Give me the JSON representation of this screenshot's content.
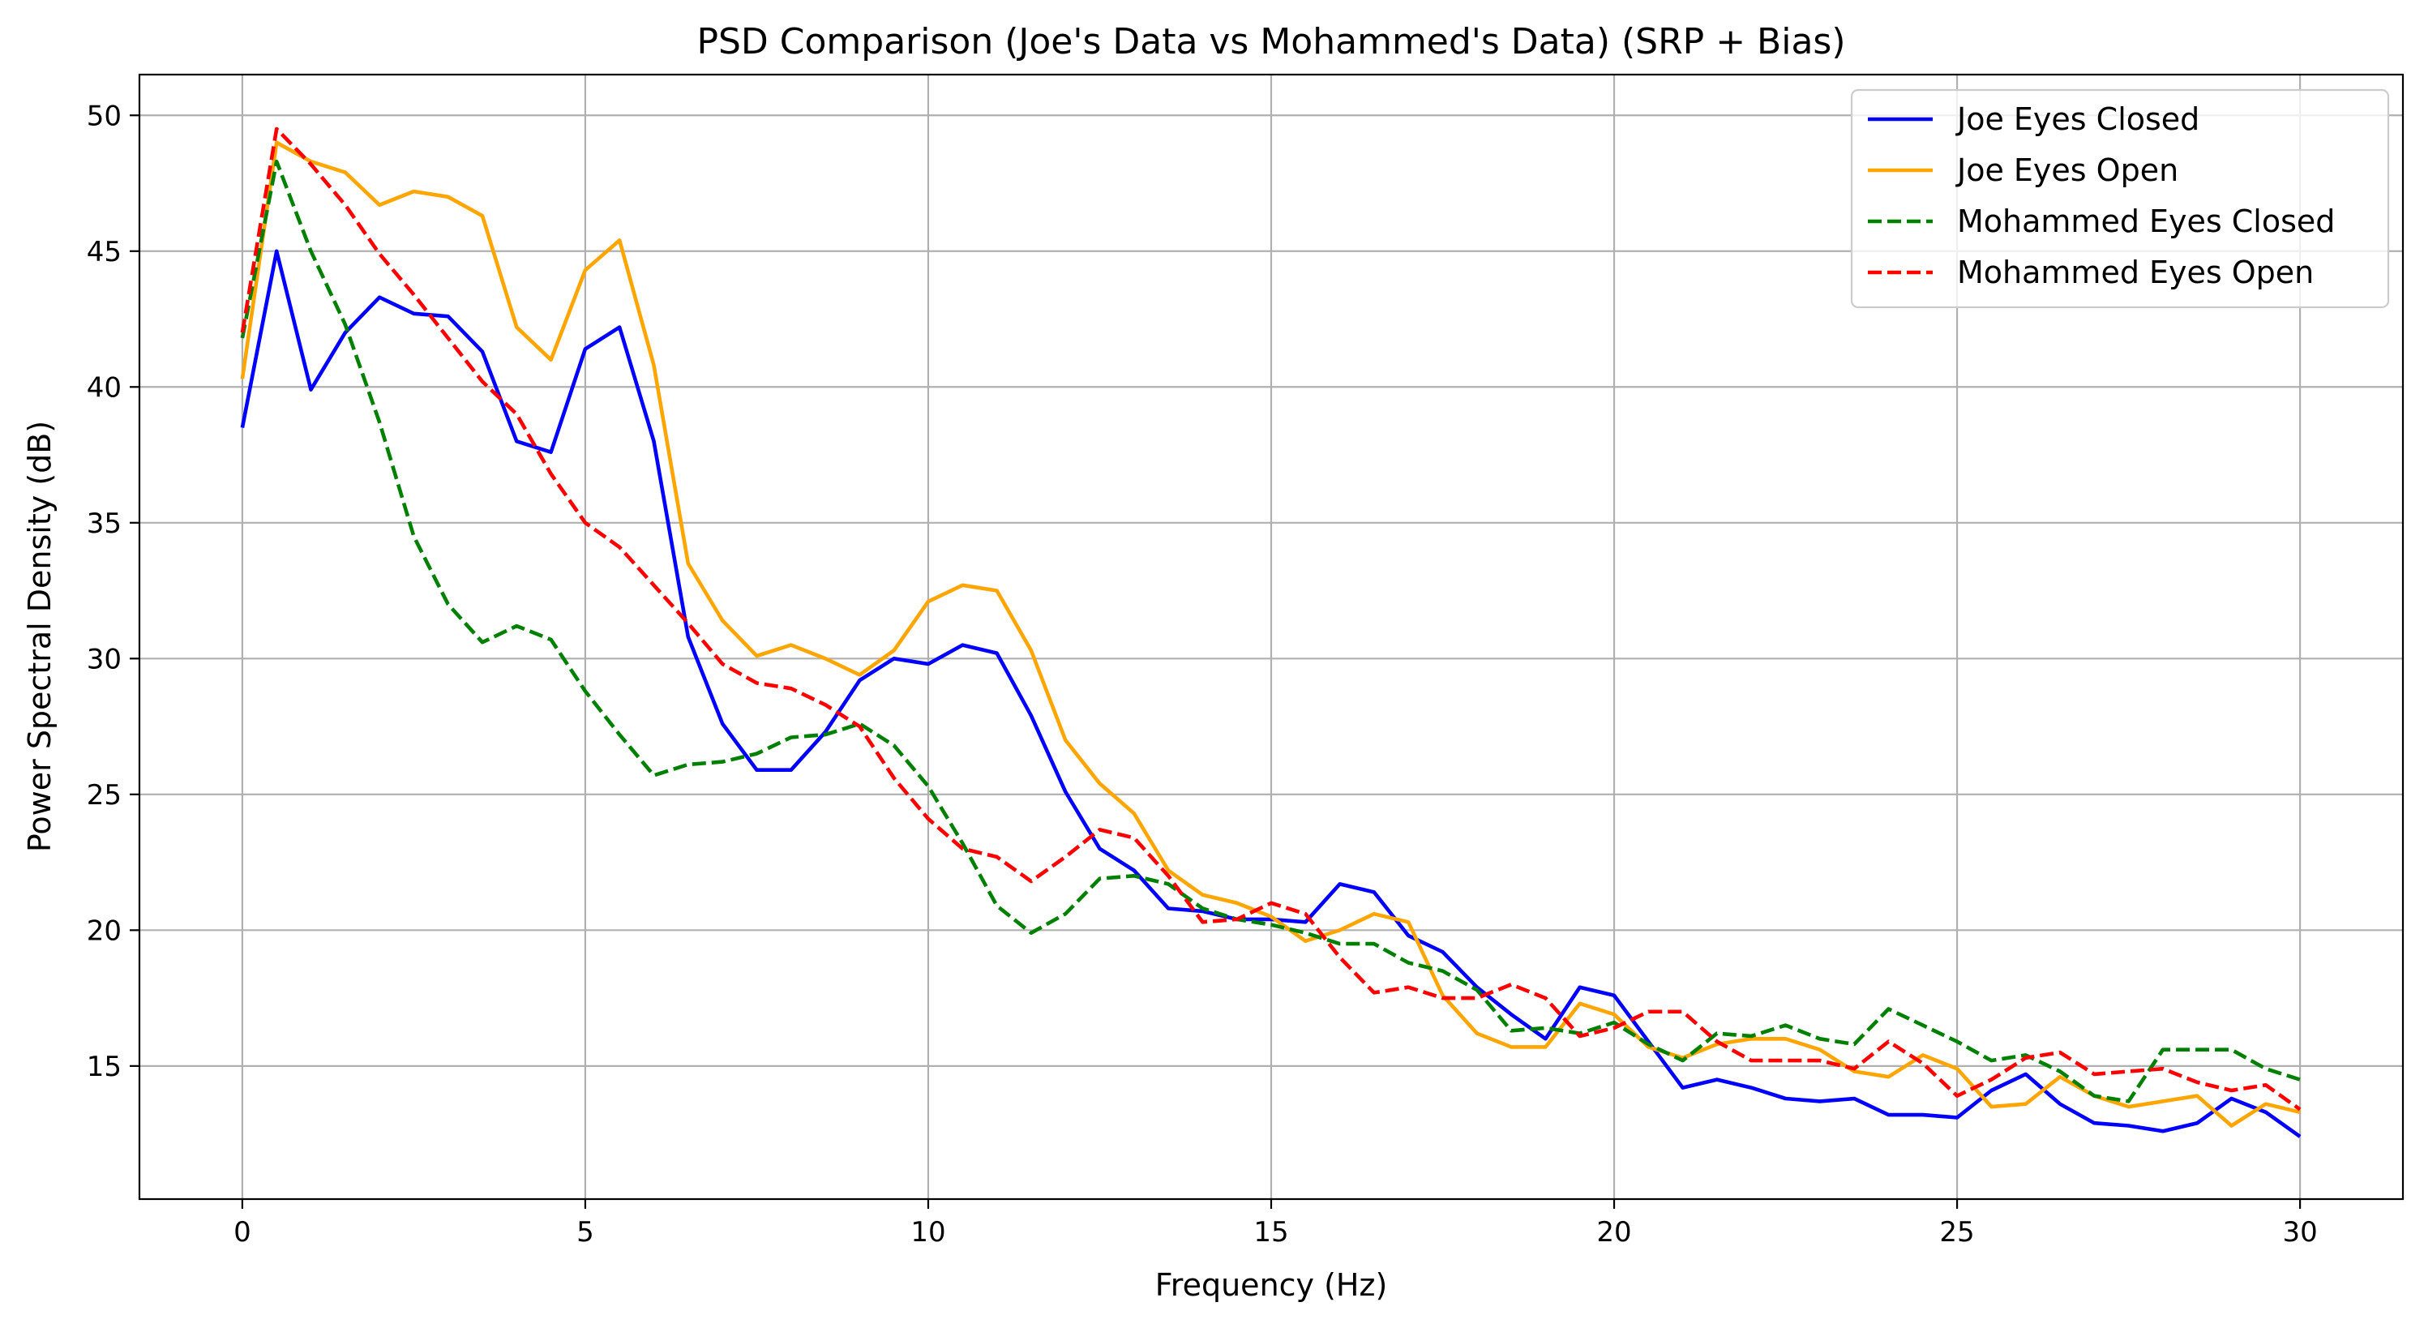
{
  "chart_data": {
    "type": "line",
    "title": "PSD Comparison (Joe's Data vs Mohammed's Data) (SRP + Bias)",
    "xlabel": "Frequency (Hz)",
    "ylabel": "Power Spectral Density (dB)",
    "xlim": [
      -1.5,
      31.5
    ],
    "ylim": [
      10.1,
      51.5
    ],
    "xticks": [
      0,
      5,
      10,
      15,
      20,
      25,
      30
    ],
    "yticks": [
      15,
      20,
      25,
      30,
      35,
      40,
      45,
      50
    ],
    "grid": true,
    "legend_position": "top-right",
    "x": [
      0,
      0.5,
      1,
      1.5,
      2,
      2.5,
      3,
      3.5,
      4,
      4.5,
      5,
      5.5,
      6,
      6.5,
      7,
      7.5,
      8,
      8.5,
      9,
      9.5,
      10,
      10.5,
      11,
      11.5,
      12,
      12.5,
      13,
      13.5,
      14,
      14.5,
      15,
      15.5,
      16,
      16.5,
      17,
      17.5,
      18,
      18.5,
      19,
      19.5,
      20,
      20.5,
      21,
      21.5,
      22,
      22.5,
      23,
      23.5,
      24,
      24.5,
      25,
      25.5,
      26,
      26.5,
      27,
      27.5,
      28,
      28.5,
      29,
      29.5,
      30
    ],
    "series": [
      {
        "name": "Joe Eyes Closed",
        "color": "#0000ff",
        "linestyle": "solid",
        "values": [
          38.5,
          45.0,
          39.9,
          42.0,
          43.3,
          42.7,
          42.6,
          41.3,
          38.0,
          37.6,
          41.4,
          42.2,
          38.0,
          30.8,
          27.6,
          25.9,
          25.9,
          27.3,
          29.2,
          30.0,
          29.8,
          30.5,
          30.2,
          27.9,
          25.1,
          23.0,
          22.2,
          20.8,
          20.7,
          20.4,
          20.4,
          20.3,
          21.7,
          21.4,
          19.8,
          19.2,
          17.9,
          16.9,
          16.0,
          17.9,
          17.6,
          15.9,
          14.2,
          14.5,
          14.2,
          13.8,
          13.7,
          13.8,
          13.2,
          13.2,
          13.1,
          14.1,
          14.7,
          13.6,
          12.9,
          12.8,
          12.6,
          12.9,
          13.8,
          13.3,
          12.4
        ]
      },
      {
        "name": "Joe Eyes Open",
        "color": "#ffa500",
        "linestyle": "solid",
        "values": [
          40.3,
          49.0,
          48.3,
          47.9,
          46.7,
          47.2,
          47.0,
          46.3,
          42.2,
          41.0,
          44.3,
          45.4,
          40.8,
          33.5,
          31.4,
          30.1,
          30.5,
          30.0,
          29.4,
          30.3,
          32.1,
          32.7,
          32.5,
          30.3,
          27.0,
          25.4,
          24.3,
          22.2,
          21.3,
          21.0,
          20.5,
          19.6,
          20.0,
          20.6,
          20.3,
          17.6,
          16.2,
          15.7,
          15.7,
          17.3,
          16.9,
          15.7,
          15.3,
          15.8,
          16.0,
          16.0,
          15.6,
          14.8,
          14.6,
          15.4,
          14.9,
          13.5,
          13.6,
          14.6,
          13.9,
          13.5,
          13.7,
          13.9,
          12.8,
          13.6,
          13.3
        ]
      },
      {
        "name": "Mohammed Eyes Closed",
        "color": "#008000",
        "linestyle": "dashed",
        "values": [
          41.8,
          48.3,
          45.0,
          42.3,
          38.7,
          34.5,
          32.0,
          30.6,
          31.2,
          30.7,
          28.8,
          27.2,
          25.7,
          26.1,
          26.2,
          26.5,
          27.1,
          27.2,
          27.6,
          26.8,
          25.3,
          23.2,
          20.9,
          19.9,
          20.6,
          21.9,
          22.0,
          21.7,
          20.8,
          20.4,
          20.2,
          19.9,
          19.5,
          19.5,
          18.8,
          18.5,
          17.8,
          16.3,
          16.4,
          16.2,
          16.6,
          15.8,
          15.2,
          16.2,
          16.1,
          16.5,
          16.0,
          15.8,
          17.1,
          16.5,
          15.9,
          15.2,
          15.4,
          14.8,
          13.9,
          13.7,
          15.6,
          15.6,
          15.6,
          14.9,
          14.5
        ]
      },
      {
        "name": "Mohammed Eyes Open",
        "color": "#ff0000",
        "linestyle": "dashed",
        "values": [
          42.0,
          49.5,
          48.2,
          46.7,
          44.9,
          43.4,
          41.8,
          40.2,
          39.0,
          36.8,
          35.0,
          34.1,
          32.7,
          31.3,
          29.8,
          29.1,
          28.9,
          28.3,
          27.5,
          25.6,
          24.1,
          23.0,
          22.7,
          21.8,
          22.7,
          23.7,
          23.4,
          22.0,
          20.3,
          20.4,
          21.0,
          20.6,
          19.0,
          17.7,
          17.9,
          17.5,
          17.5,
          18.0,
          17.5,
          16.1,
          16.4,
          17.0,
          17.0,
          15.9,
          15.2,
          15.2,
          15.2,
          14.9,
          15.9,
          15.1,
          13.9,
          14.5,
          15.3,
          15.5,
          14.7,
          14.8,
          14.9,
          14.4,
          14.1,
          14.3,
          13.4
        ]
      }
    ]
  }
}
